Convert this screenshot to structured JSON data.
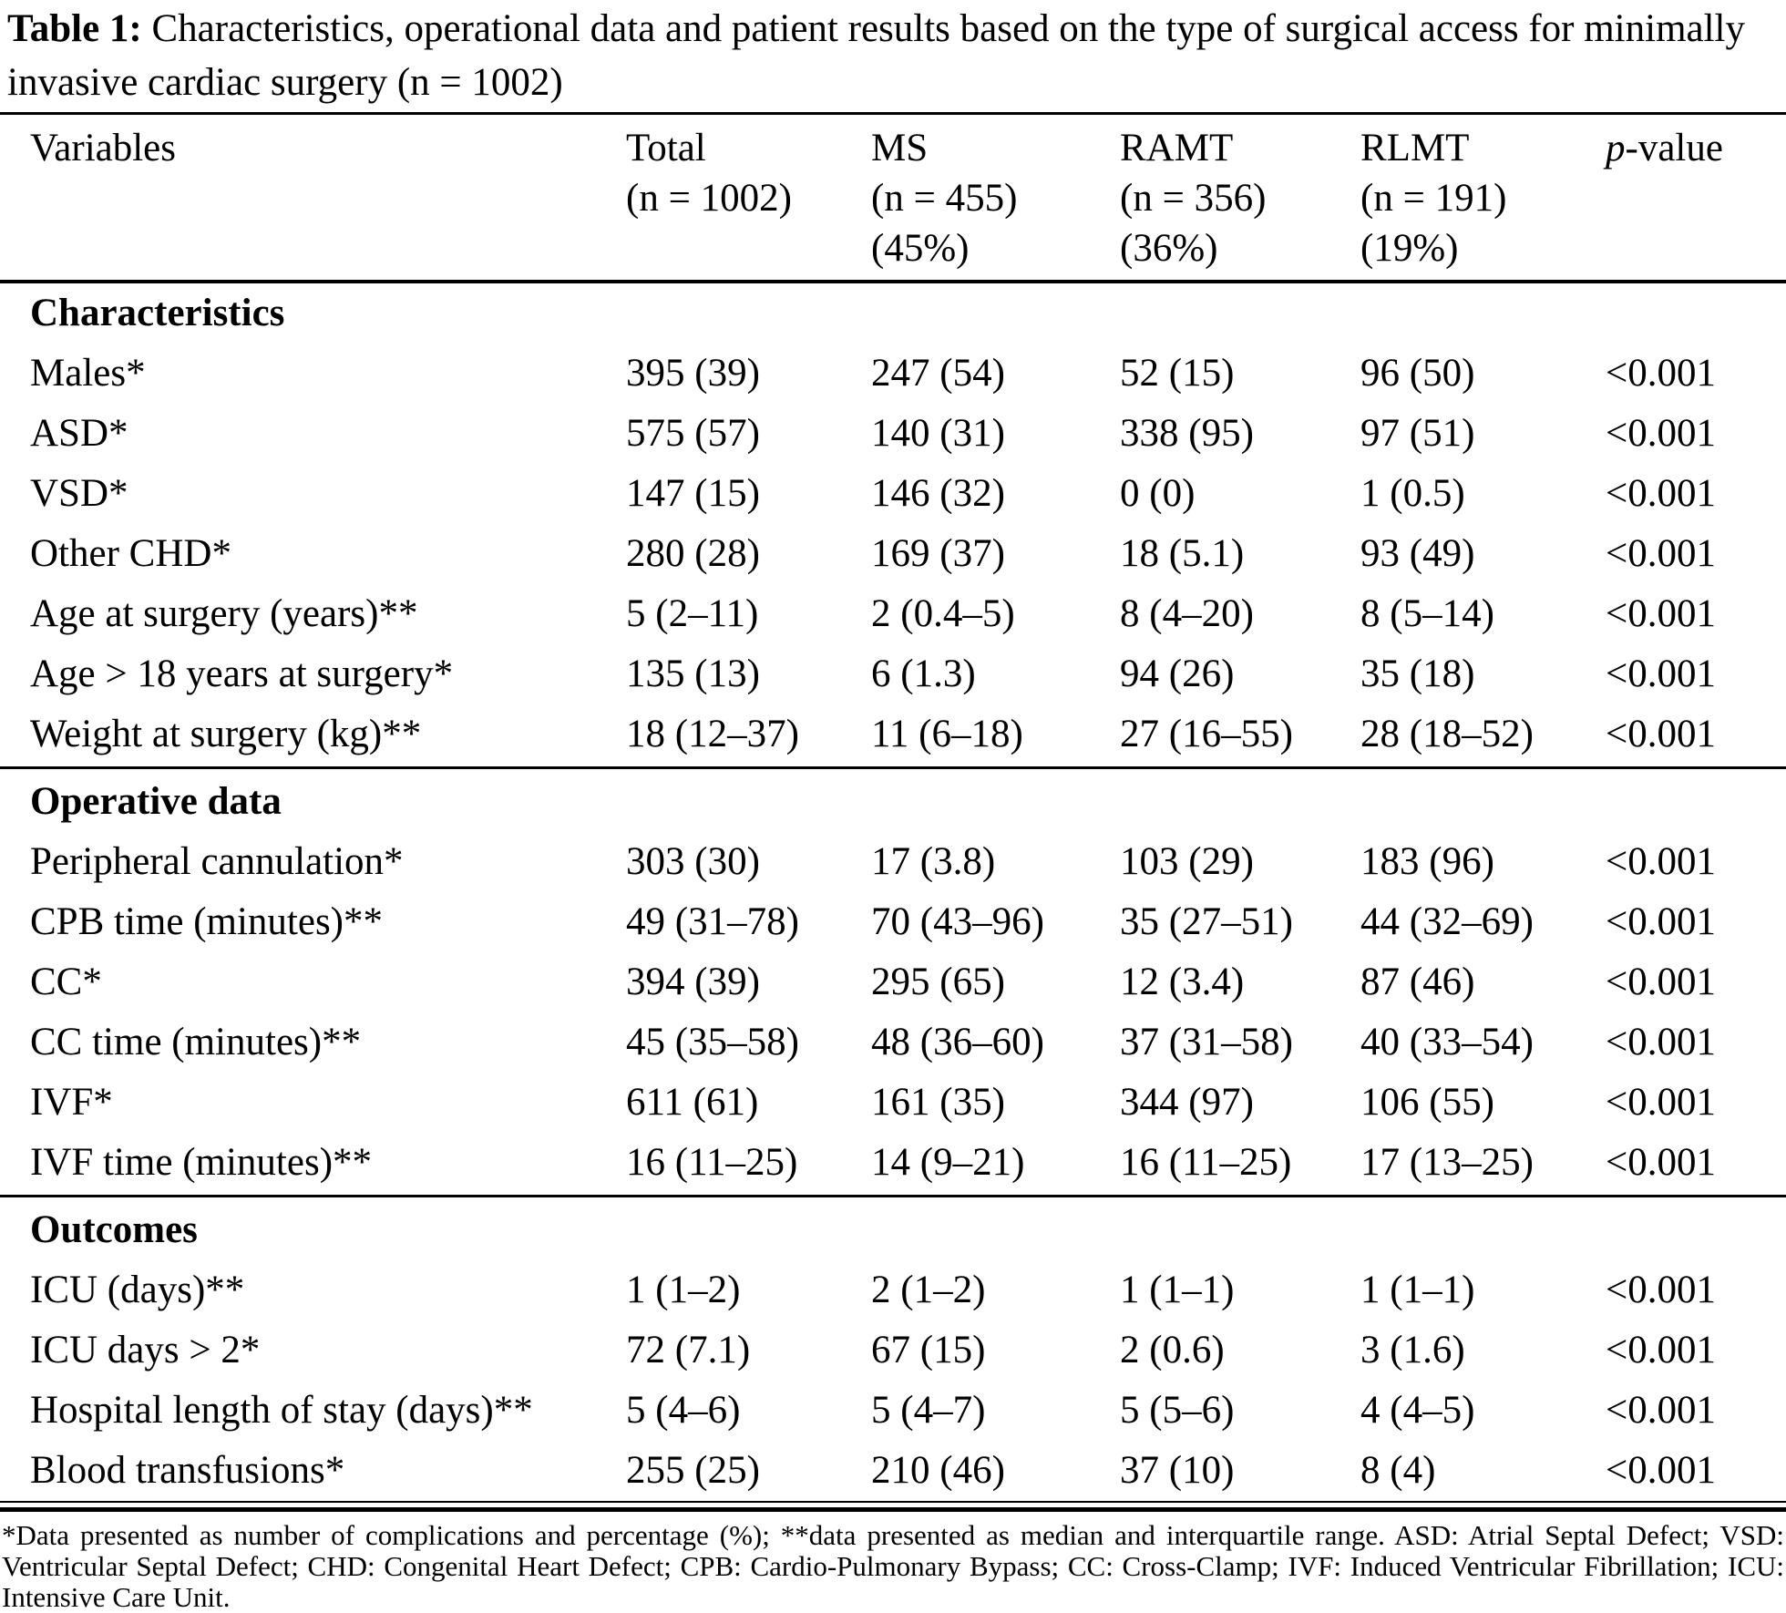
{
  "caption": {
    "label": "Table 1:",
    "text": " Characteristics, operational data and patient results based on the type of surgical access for minimally invasive cardiac surgery (n = 1002)"
  },
  "table": {
    "columns": [
      {
        "key": "variables",
        "lines": [
          "Variables"
        ]
      },
      {
        "key": "total",
        "lines": [
          "Total",
          "(n = 1002)"
        ]
      },
      {
        "key": "ms",
        "lines": [
          "MS",
          "(n = 455)",
          "(45%)"
        ]
      },
      {
        "key": "ramt",
        "lines": [
          "RAMT",
          "(n = 356)",
          "(36%)"
        ]
      },
      {
        "key": "rlmt",
        "lines": [
          "RLMT",
          "(n = 191)",
          "(19%)"
        ]
      },
      {
        "key": "pvalue",
        "lines": [
          "p-value"
        ],
        "italic_first": true
      }
    ],
    "sections": [
      {
        "key": "characteristics",
        "heading": "Characteristics",
        "rule_after": true,
        "rows": [
          {
            "label": "Males*",
            "values": [
              "395 (39)",
              "247 (54)",
              "52 (15)",
              "96 (50)",
              "<0.001"
            ]
          },
          {
            "label": "ASD*",
            "values": [
              "575 (57)",
              "140 (31)",
              "338 (95)",
              "97 (51)",
              "<0.001"
            ]
          },
          {
            "label": "VSD*",
            "values": [
              "147 (15)",
              "146 (32)",
              "0 (0)",
              "1 (0.5)",
              "<0.001"
            ]
          },
          {
            "label": "Other CHD*",
            "values": [
              "280 (28)",
              "169 (37)",
              "18 (5.1)",
              "93 (49)",
              "<0.001"
            ]
          },
          {
            "label": "Age at surgery (years)**",
            "values": [
              "5 (2–11)",
              "2 (0.4–5)",
              "8 (4–20)",
              "8 (5–14)",
              "<0.001"
            ]
          },
          {
            "label": "Age > 18 years at surgery*",
            "values": [
              "135 (13)",
              "6 (1.3)",
              "94 (26)",
              "35 (18)",
              "<0.001"
            ]
          },
          {
            "label": "Weight at surgery (kg)**",
            "values": [
              "18 (12–37)",
              "11 (6–18)",
              "27 (16–55)",
              "28 (18–52)",
              "<0.001"
            ]
          }
        ]
      },
      {
        "key": "operative-data",
        "heading": "Operative data",
        "rule_after": true,
        "rows": [
          {
            "label": "Peripheral cannulation*",
            "values": [
              "303 (30)",
              "17 (3.8)",
              "103 (29)",
              "183 (96)",
              "<0.001"
            ]
          },
          {
            "label": "CPB time (minutes)**",
            "values": [
              "49 (31–78)",
              "70 (43–96)",
              "35 (27–51)",
              "44 (32–69)",
              "<0.001"
            ]
          },
          {
            "label": "CC*",
            "values": [
              "394 (39)",
              "295 (65)",
              "12 (3.4)",
              "87 (46)",
              "<0.001"
            ]
          },
          {
            "label": "CC time (minutes)**",
            "values": [
              "45 (35–58)",
              "48 (36–60)",
              "37 (31–58)",
              "40 (33–54)",
              "<0.001"
            ]
          },
          {
            "label": "IVF*",
            "values": [
              "611 (61)",
              "161 (35)",
              "344 (97)",
              "106 (55)",
              "<0.001"
            ]
          },
          {
            "label": "IVF time (minutes)**",
            "values": [
              "16 (11–25)",
              "14 (9–21)",
              "16 (11–25)",
              "17 (13–25)",
              "<0.001"
            ]
          }
        ]
      },
      {
        "key": "outcomes",
        "heading": "Outcomes",
        "rule_after": false,
        "rows": [
          {
            "label": "ICU (days)**",
            "values": [
              "1 (1–2)",
              "2 (1–2)",
              "1 (1–1)",
              "1 (1–1)",
              "<0.001"
            ]
          },
          {
            "label": "ICU days > 2*",
            "values": [
              "72 (7.1)",
              "67 (15)",
              "2 (0.6)",
              "3 (1.6)",
              "<0.001"
            ]
          },
          {
            "label": "Hospital length of stay (days)**",
            "values": [
              "5 (4–6)",
              "5 (4–7)",
              "5 (5–6)",
              "4 (4–5)",
              "<0.001"
            ]
          },
          {
            "label": "Blood transfusions*",
            "values": [
              "255 (25)",
              "210 (46)",
              "37 (10)",
              "8 (4)",
              "<0.001"
            ]
          }
        ]
      }
    ]
  },
  "footnote": {
    "text": "*Data presented as number of complications and percentage (%); **data presented as median and interquartile range. ASD: Atrial Septal Defect; VSD: Ventricular Septal Defect; CHD: Congenital Heart Defect; CPB: Cardio-Pulmonary Bypass; CC: Cross-Clamp; IVF: Induced Ventricular Fibrillation; ICU: Intensive Care Unit."
  }
}
